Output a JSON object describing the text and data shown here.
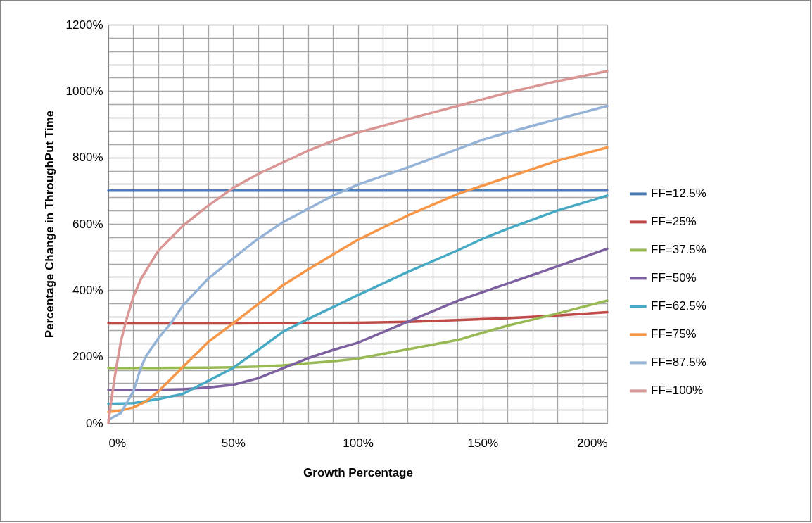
{
  "chart_data": {
    "type": "line",
    "xlabel": "Growth Percentage",
    "ylabel": "Percentage Change in ThroughPut Time",
    "xlim": [
      0,
      200
    ],
    "ylim": [
      0,
      1200
    ],
    "xticks": [
      {
        "value": 0,
        "label": "0%"
      },
      {
        "value": 10,
        "label": null
      },
      {
        "value": 20,
        "label": null
      },
      {
        "value": 30,
        "label": null
      },
      {
        "value": 40,
        "label": null
      },
      {
        "value": 50,
        "label": "50%"
      },
      {
        "value": 60,
        "label": null
      },
      {
        "value": 70,
        "label": null
      },
      {
        "value": 80,
        "label": null
      },
      {
        "value": 90,
        "label": null
      },
      {
        "value": 100,
        "label": "100%"
      },
      {
        "value": 110,
        "label": null
      },
      {
        "value": 120,
        "label": null
      },
      {
        "value": 130,
        "label": null
      },
      {
        "value": 140,
        "label": null
      },
      {
        "value": 150,
        "label": "150%"
      },
      {
        "value": 160,
        "label": null
      },
      {
        "value": 170,
        "label": null
      },
      {
        "value": 180,
        "label": null
      },
      {
        "value": 190,
        "label": null
      },
      {
        "value": 200,
        "label": "200%"
      }
    ],
    "yticks": [
      {
        "value": 0,
        "label": "0%"
      },
      {
        "value": 40,
        "label": null
      },
      {
        "value": 80,
        "label": null
      },
      {
        "value": 120,
        "label": null
      },
      {
        "value": 160,
        "label": null
      },
      {
        "value": 200,
        "label": "200%"
      },
      {
        "value": 240,
        "label": null
      },
      {
        "value": 280,
        "label": null
      },
      {
        "value": 320,
        "label": null
      },
      {
        "value": 360,
        "label": null
      },
      {
        "value": 400,
        "label": "400%"
      },
      {
        "value": 440,
        "label": null
      },
      {
        "value": 480,
        "label": null
      },
      {
        "value": 520,
        "label": null
      },
      {
        "value": 560,
        "label": null
      },
      {
        "value": 600,
        "label": "600%"
      },
      {
        "value": 640,
        "label": null
      },
      {
        "value": 680,
        "label": null
      },
      {
        "value": 720,
        "label": null
      },
      {
        "value": 760,
        "label": null
      },
      {
        "value": 800,
        "label": "800%"
      },
      {
        "value": 840,
        "label": null
      },
      {
        "value": 880,
        "label": null
      },
      {
        "value": 920,
        "label": null
      },
      {
        "value": 960,
        "label": null
      },
      {
        "value": 1000,
        "label": "1000%"
      },
      {
        "value": 1040,
        "label": null
      },
      {
        "value": 1080,
        "label": null
      },
      {
        "value": 1120,
        "label": null
      },
      {
        "value": 1160,
        "label": null
      },
      {
        "value": 1200,
        "label": "1200%"
      }
    ],
    "grid": true,
    "legend": "right",
    "marker": "none",
    "line_style": "solid",
    "series": [
      {
        "name": "FF=12.5%",
        "color": "#4a7ebb",
        "x": [
          0,
          50,
          100,
          150,
          200
        ],
        "values": [
          700,
          700,
          700,
          700,
          700
        ]
      },
      {
        "name": "FF=25%",
        "color": "#be4b48",
        "x": [
          0,
          50,
          100,
          120,
          140,
          160,
          180,
          200
        ],
        "values": [
          300,
          300,
          302,
          305,
          310,
          316,
          324,
          334
        ]
      },
      {
        "name": "FF=37.5%",
        "color": "#98b954",
        "x": [
          0,
          20,
          40,
          50,
          60,
          70,
          80,
          90,
          100,
          120,
          140,
          150,
          160,
          180,
          200
        ],
        "values": [
          166,
          166,
          167,
          168,
          170,
          174,
          180,
          186,
          194,
          222,
          250,
          272,
          293,
          330,
          369
        ]
      },
      {
        "name": "FF=50%",
        "color": "#7d60a0",
        "x": [
          0,
          20,
          30,
          40,
          50,
          60,
          70,
          80,
          90,
          100,
          120,
          140,
          150,
          160,
          180,
          200
        ],
        "values": [
          100,
          100,
          102,
          107,
          115,
          135,
          165,
          195,
          220,
          242,
          305,
          368,
          394,
          420,
          472,
          525
        ]
      },
      {
        "name": "FF=62.5%",
        "color": "#46aac5",
        "x": [
          0,
          10,
          20,
          30,
          40,
          50,
          60,
          70,
          80,
          90,
          100,
          120,
          140,
          150,
          160,
          180,
          200
        ],
        "values": [
          58,
          60,
          72,
          88,
          127,
          166,
          220,
          275,
          313,
          349,
          385,
          455,
          520,
          555,
          585,
          640,
          685
        ]
      },
      {
        "name": "FF=75%",
        "color": "#f79646",
        "x": [
          0,
          5,
          10,
          15,
          20,
          30,
          40,
          50,
          60,
          70,
          80,
          90,
          100,
          120,
          140,
          150,
          160,
          180,
          200
        ],
        "values": [
          33,
          38,
          47,
          65,
          95,
          170,
          244,
          300,
          358,
          415,
          462,
          507,
          552,
          625,
          690,
          715,
          740,
          790,
          830
        ]
      },
      {
        "name": "FF=87.5%",
        "color": "#95b3d7",
        "x": [
          0,
          5,
          10,
          13,
          15,
          20,
          25,
          30,
          40,
          50,
          60,
          70,
          80,
          90,
          100,
          120,
          140,
          150,
          160,
          180,
          200
        ],
        "values": [
          10,
          30,
          95,
          166,
          200,
          255,
          300,
          355,
          435,
          496,
          555,
          605,
          645,
          685,
          718,
          770,
          825,
          853,
          875,
          915,
          955
        ]
      },
      {
        "name": "FF=100%",
        "color": "#d99694",
        "x": [
          0,
          1,
          3,
          5,
          7,
          10,
          13,
          20,
          30,
          40,
          50,
          60,
          70,
          80,
          90,
          100,
          120,
          140,
          150,
          160,
          180,
          200
        ],
        "values": [
          0,
          60,
          160,
          245,
          305,
          380,
          433,
          519,
          595,
          655,
          708,
          750,
          785,
          820,
          850,
          875,
          915,
          955,
          975,
          995,
          1030,
          1060
        ]
      }
    ]
  }
}
